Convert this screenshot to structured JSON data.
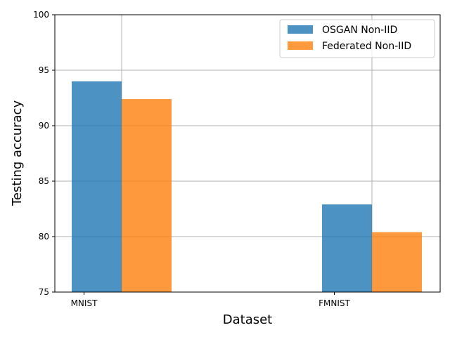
{
  "chart_data": {
    "type": "bar",
    "categories": [
      "MNIST",
      "FMNIST"
    ],
    "series": [
      {
        "name": "OSGAN Non-IID",
        "values": [
          94.0,
          82.9
        ],
        "color": "#1f77b4"
      },
      {
        "name": "Federated Non-IID",
        "values": [
          92.4,
          80.4
        ],
        "color": "#ff7f0e"
      }
    ],
    "xlabel": "Dataset",
    "ylabel": "Testing accuracy",
    "ylim": [
      75,
      100
    ],
    "yticks": [
      75,
      80,
      85,
      90,
      95,
      100
    ],
    "grid": true,
    "legend_position": "top-right"
  }
}
